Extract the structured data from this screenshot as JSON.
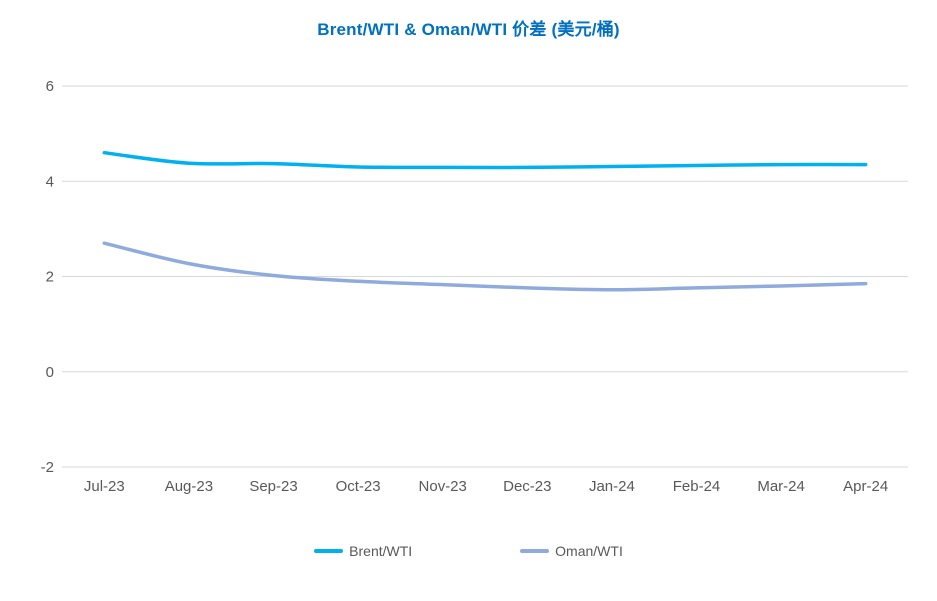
{
  "chart_data": {
    "type": "line",
    "title": "Brent/WTI & Oman/WTI 价差 (美元/桶)",
    "title_color": "#0070C0",
    "categories": [
      "Jul-23",
      "Aug-23",
      "Sep-23",
      "Oct-23",
      "Nov-23",
      "Dec-23",
      "Jan-24",
      "Feb-24",
      "Mar-24",
      "Apr-24"
    ],
    "series": [
      {
        "name": "Brent/WTI",
        "color": "#00B0F0",
        "values": [
          4.6,
          4.38,
          4.37,
          4.3,
          4.29,
          4.29,
          4.31,
          4.33,
          4.35,
          4.35
        ]
      },
      {
        "name": "Oman/WTI",
        "color": "#8FAADC",
        "values": [
          2.7,
          2.27,
          2.02,
          1.9,
          1.83,
          1.76,
          1.72,
          1.76,
          1.8,
          1.85
        ]
      }
    ],
    "ylim": [
      -2,
      6
    ],
    "y_ticks": [
      6,
      4,
      2,
      0,
      -2
    ],
    "xlabel": "",
    "ylabel": "",
    "grid": true,
    "smooth": true,
    "legend_position": "bottom"
  },
  "colors": {
    "background": "#FFFFFF",
    "gridline": "#D9D9D9",
    "axis_text": "#595959",
    "legend_text": "#595959"
  }
}
